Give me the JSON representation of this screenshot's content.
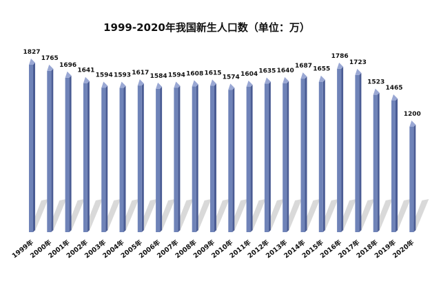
{
  "chart_data": {
    "type": "bar",
    "title": "1999-2020年我国新生人口数（单位：万）",
    "categories": [
      "1999年",
      "2000年",
      "2001年",
      "2002年",
      "2003年",
      "2004年",
      "2005年",
      "2006年",
      "2007年",
      "2008年",
      "2009年",
      "2010年",
      "2011年",
      "2012年",
      "2013年",
      "2014年",
      "2015年",
      "2016年",
      "2017年",
      "2018年",
      "2019年",
      "2020年"
    ],
    "values": [
      1827,
      1765,
      1696,
      1641,
      1594,
      1593,
      1617,
      1584,
      1594,
      1608,
      1615,
      1574,
      1604,
      1635,
      1640,
      1687,
      1655,
      1786,
      1723,
      1523,
      1465,
      1200
    ],
    "xlabel": "",
    "ylabel": "",
    "grid": false,
    "legend": "none",
    "colors": {
      "bar_front": "#6F83B8",
      "bar_side": "#4A5C94",
      "bar_top": "#9AA8D4",
      "shadow": "#D9D9D9"
    }
  }
}
